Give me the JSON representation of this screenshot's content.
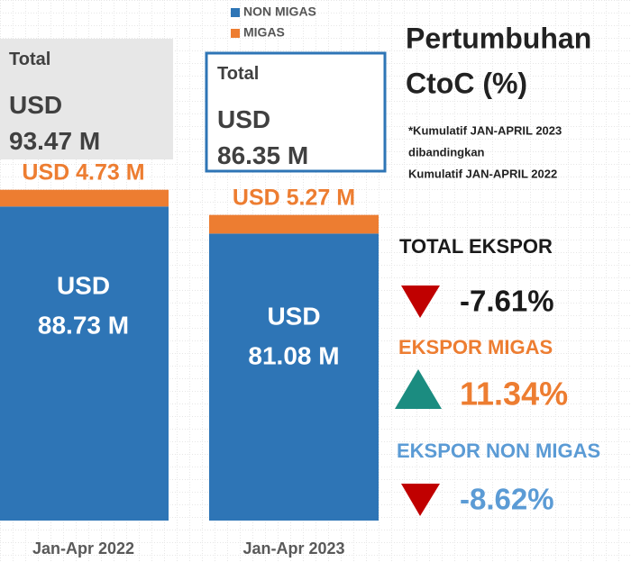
{
  "chart_data": {
    "type": "bar",
    "stacked": true,
    "categories": [
      "Jan-Apr 2022",
      "Jan-Apr 2023"
    ],
    "series": [
      {
        "name": "NON MIGAS",
        "color": "#2e75b6",
        "values": [
          88.73,
          81.08
        ],
        "value_labels": [
          "USD 88.73 M",
          "USD 81.08 M"
        ]
      },
      {
        "name": "MIGAS",
        "color": "#ed7d31",
        "values": [
          4.73,
          5.27
        ],
        "value_labels": [
          "USD 4.73 M",
          "USD 5.27 M"
        ]
      }
    ],
    "totals": [
      93.47,
      86.35
    ],
    "total_labels": [
      "Total USD 93.47 M",
      "Total USD 86.35 M"
    ]
  },
  "growth": {
    "title": [
      "Pertumbuhan",
      "CtoC (%)"
    ],
    "note": [
      "*Kumulatif JAN-APRIL 2023",
      "dibandingkan",
      "Kumulatif JAN-APRIL 2022"
    ],
    "items": [
      {
        "label": "TOTAL EKSPOR",
        "value": "-7.61%",
        "direction": "down"
      },
      {
        "label": "EKSPOR MIGAS",
        "value": "11.34%",
        "direction": "up"
      },
      {
        "label": "EKSPOR NON MIGAS",
        "value": "-8.62%",
        "direction": "down"
      }
    ]
  }
}
